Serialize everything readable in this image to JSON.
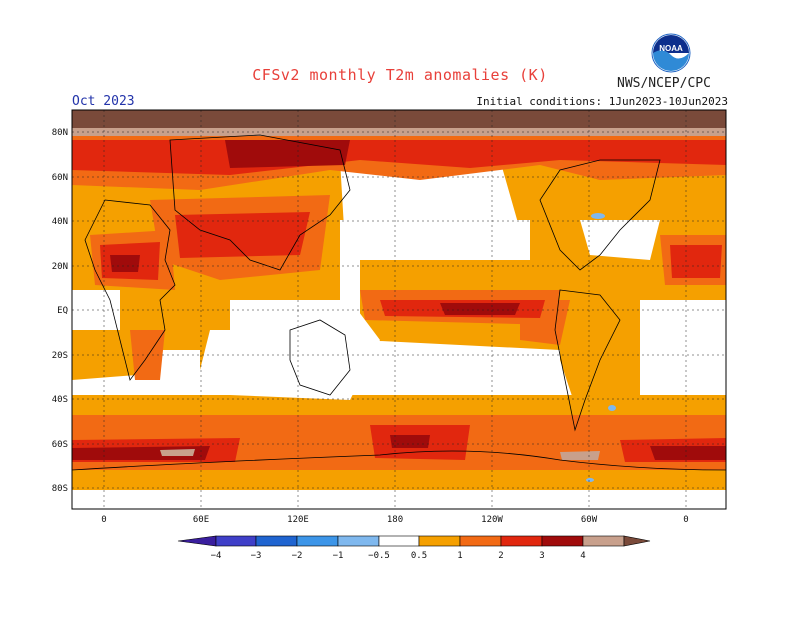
{
  "header": {
    "title": "CFSv2 monthly T2m anomalies (K)",
    "agency": "NWS/NCEP/CPC",
    "month": "Oct 2023",
    "initial_conditions": "Initial conditions: 1Jun2023-10Jun2023",
    "logo_text": "NOAA"
  },
  "axes": {
    "lat_labels": [
      "80N",
      "60N",
      "40N",
      "20N",
      "EQ",
      "20S",
      "40S",
      "60S",
      "80S"
    ],
    "lon_labels": [
      "0",
      "60E",
      "120E",
      "180",
      "120W",
      "60W",
      "0"
    ]
  },
  "colorbar": {
    "labels": [
      "−4",
      "−3",
      "−2",
      "−1",
      "−0.5",
      "0.5",
      "1",
      "2",
      "3",
      "4"
    ],
    "colors": {
      "lt_-4": "#3a1e9e",
      "-4_-3": "#3f3fc8",
      "-3_-2": "#1f64d0",
      "-2_-1": "#3c95e8",
      "-1_-0.5": "#7fb8ee",
      "neutral": "#ffffff",
      "0.5_1": "#f5a000",
      "1_2": "#f26a14",
      "2_3": "#e1270e",
      "3_4": "#a00b0b",
      "4_5": "#c8a08c",
      "gt_5": "#7a4a3a"
    }
  },
  "map_colors": {
    "land_outline": "#000000",
    "grid": "#222222"
  }
}
